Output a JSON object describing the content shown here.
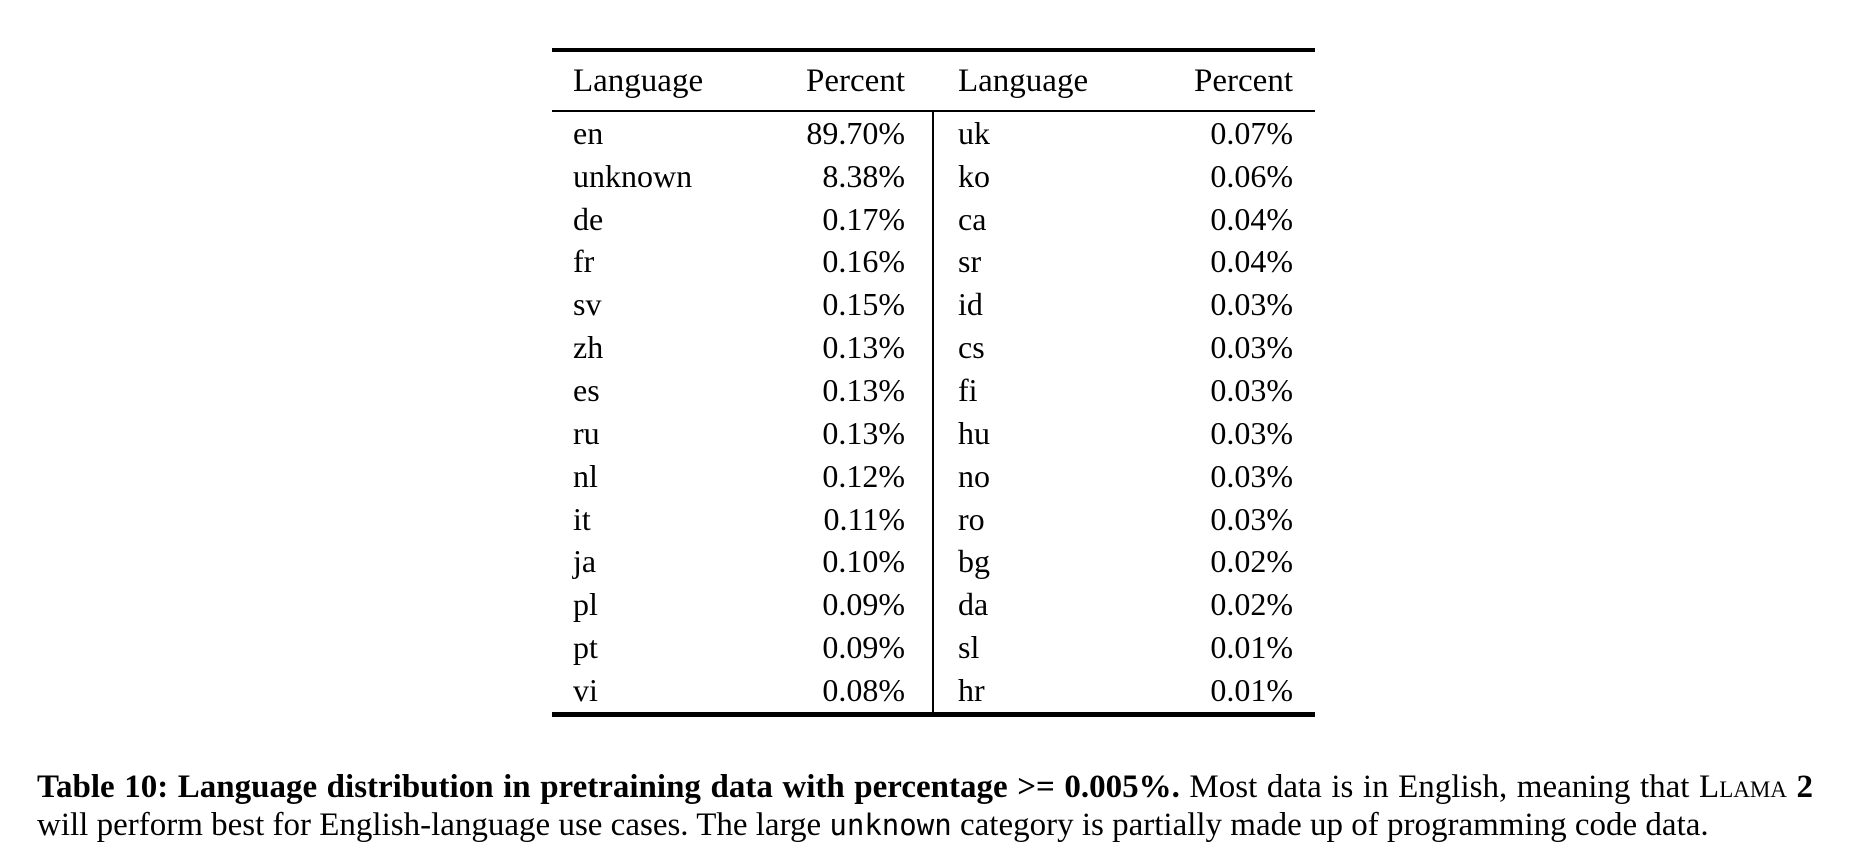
{
  "table": {
    "headers": [
      "Language",
      "Percent",
      "Language",
      "Percent"
    ],
    "rows": [
      {
        "lang1": "en",
        "pct1": "89.70%",
        "lang2": "uk",
        "pct2": "0.07%"
      },
      {
        "lang1": "unknown",
        "pct1": "8.38%",
        "lang2": "ko",
        "pct2": "0.06%"
      },
      {
        "lang1": "de",
        "pct1": "0.17%",
        "lang2": "ca",
        "pct2": "0.04%"
      },
      {
        "lang1": "fr",
        "pct1": "0.16%",
        "lang2": "sr",
        "pct2": "0.04%"
      },
      {
        "lang1": "sv",
        "pct1": "0.15%",
        "lang2": "id",
        "pct2": "0.03%"
      },
      {
        "lang1": "zh",
        "pct1": "0.13%",
        "lang2": "cs",
        "pct2": "0.03%"
      },
      {
        "lang1": "es",
        "pct1": "0.13%",
        "lang2": "fi",
        "pct2": "0.03%"
      },
      {
        "lang1": "ru",
        "pct1": "0.13%",
        "lang2": "hu",
        "pct2": "0.03%"
      },
      {
        "lang1": "nl",
        "pct1": "0.12%",
        "lang2": "no",
        "pct2": "0.03%"
      },
      {
        "lang1": "it",
        "pct1": "0.11%",
        "lang2": "ro",
        "pct2": "0.03%"
      },
      {
        "lang1": "ja",
        "pct1": "0.10%",
        "lang2": "bg",
        "pct2": "0.02%"
      },
      {
        "lang1": "pl",
        "pct1": "0.09%",
        "lang2": "da",
        "pct2": "0.02%"
      },
      {
        "lang1": "pt",
        "pct1": "0.09%",
        "lang2": "sl",
        "pct2": "0.01%"
      },
      {
        "lang1": "vi",
        "pct1": "0.08%",
        "lang2": "hr",
        "pct2": "0.01%"
      }
    ]
  },
  "caption": {
    "bold": "Table 10: Language distribution in pretraining data with percentage >= 0.005%.",
    "text1": " Most data is in English, meaning that ",
    "model_name": "Llama",
    "model_version": " 2",
    "text2": " will perform best for English-language use cases. The large ",
    "code_term": "unknown",
    "text3": " category is partially made up of programming code data."
  }
}
